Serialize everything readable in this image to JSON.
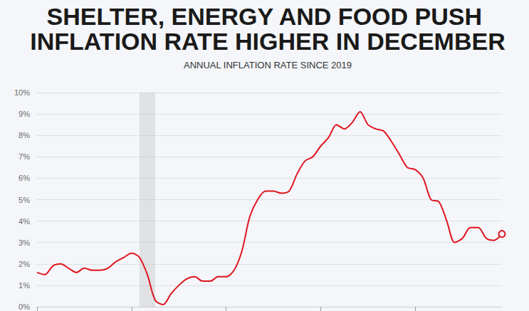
{
  "chart_data": {
    "type": "line",
    "title": "SHELTER, ENERGY AND FOOD PUSH INFLATION RATE HIGHER IN DECEMBER",
    "subtitle": "ANNUAL INFLATION RATE SINCE 2019",
    "categories": [
      null,
      null,
      null,
      null,
      null,
      null,
      null,
      null,
      null,
      null,
      null,
      null,
      null,
      null,
      null,
      null,
      null,
      null,
      null,
      null,
      null,
      null,
      null,
      null,
      null,
      null,
      null,
      null,
      null,
      null,
      null,
      null,
      null,
      null,
      null,
      null,
      null,
      null,
      null,
      null,
      null,
      null,
      null,
      null,
      null,
      null,
      null,
      null,
      null,
      null,
      null,
      null,
      null,
      null,
      null,
      null,
      null,
      null,
      null,
      null
    ],
    "values": [
      1.6,
      1.5,
      1.9,
      2.0,
      1.8,
      1.6,
      1.8,
      1.7,
      1.7,
      1.8,
      2.1,
      2.3,
      2.5,
      2.3,
      1.5,
      0.3,
      0.1,
      0.6,
      1.0,
      1.3,
      1.4,
      1.2,
      1.2,
      1.4,
      1.4,
      1.7,
      2.6,
      4.2,
      5.0,
      5.4,
      5.4,
      5.3,
      5.4,
      6.2,
      6.8,
      7.0,
      7.5,
      7.9,
      8.5,
      8.3,
      8.6,
      9.1,
      8.5,
      8.3,
      8.2,
      7.7,
      7.1,
      6.5,
      6.4,
      6.0,
      5.0,
      4.9,
      4.0,
      3.0,
      3.2,
      3.7,
      3.7,
      3.2,
      3.1,
      3.4
    ],
    "color": "#e0141e",
    "marker": "circle",
    "xticks": [
      0,
      12,
      24,
      36,
      48
    ],
    "bands": [
      {
        "from": 13,
        "to": 15
      }
    ],
    "ylim": [
      0,
      10
    ],
    "yticks": [
      {
        "value": 0,
        "label": "0%"
      },
      {
        "value": 1,
        "label": "1%"
      },
      {
        "value": 2,
        "label": "2%"
      },
      {
        "value": 3,
        "label": "3%"
      },
      {
        "value": 4,
        "label": "4%"
      },
      {
        "value": 5,
        "label": "5%"
      },
      {
        "value": 6,
        "label": "6%"
      },
      {
        "value": 7,
        "label": "7%"
      },
      {
        "value": 8,
        "label": "8%"
      },
      {
        "value": 9,
        "label": "9%"
      },
      {
        "value": 10,
        "label": "10%"
      }
    ],
    "grid": true,
    "tick_labels": "y"
  }
}
